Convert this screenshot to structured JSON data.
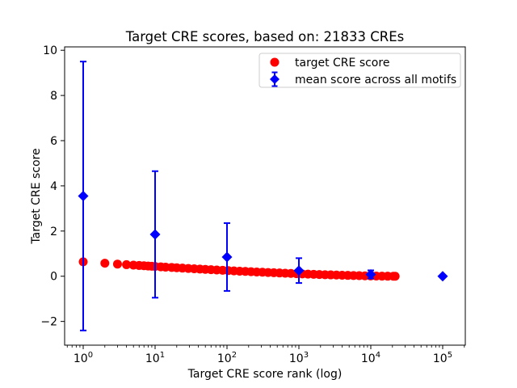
{
  "figure": {
    "background": "#ffffff"
  },
  "chart_data": {
    "type": "scatter",
    "title": "Target CRE scores, based on: 21833 CREs",
    "xlabel": "Target CRE score rank (log)",
    "ylabel": "Target CRE score",
    "x_scale": "log",
    "xlim_log10": [
      -0.2584,
      5.3146
    ],
    "ylim": [
      -3.05,
      10.15
    ],
    "x_major_tick_exponents": [
      0,
      1,
      2,
      3,
      4,
      5
    ],
    "y_ticks": [
      -2,
      0,
      2,
      4,
      6,
      8,
      10
    ],
    "grid": false,
    "legend_position": "upper right",
    "series": [
      {
        "name": "target CRE score",
        "plot_type": "scatter",
        "marker": "circle",
        "color": "#ff0000",
        "x": [
          1,
          2,
          3,
          4,
          5,
          6,
          7,
          8,
          9,
          10,
          12,
          14,
          17,
          20,
          24,
          29,
          35,
          42,
          50,
          60,
          72,
          87,
          104,
          125,
          150,
          180,
          216,
          259,
          311,
          373,
          448,
          538,
          645,
          774,
          929,
          1115,
          1338,
          1606,
          1927,
          2312,
          2774,
          3329,
          3995,
          4794,
          5753,
          6904,
          8284,
          9941,
          11929,
          14316,
          17179,
          20616,
          21833
        ],
        "y": [
          0.64,
          0.575,
          0.538,
          0.512,
          0.492,
          0.476,
          0.463,
          0.451,
          0.441,
          0.432,
          0.417,
          0.404,
          0.388,
          0.375,
          0.36,
          0.346,
          0.331,
          0.317,
          0.304,
          0.29,
          0.277,
          0.263,
          0.251,
          0.238,
          0.225,
          0.213,
          0.201,
          0.189,
          0.178,
          0.166,
          0.155,
          0.145,
          0.134,
          0.124,
          0.114,
          0.104,
          0.095,
          0.086,
          0.077,
          0.068,
          0.06,
          0.052,
          0.045,
          0.038,
          0.031,
          0.025,
          0.019,
          0.014,
          0.01,
          0.005,
          0.002,
          0.0,
          0.0
        ]
      },
      {
        "name": "mean score across all motifs",
        "plot_type": "errorbar",
        "marker": "diamond",
        "color": "#0000ff",
        "x": [
          1,
          10,
          100,
          1000,
          10000,
          100000
        ],
        "y": [
          3.55,
          1.85,
          0.85,
          0.25,
          0.08,
          0.0
        ],
        "yerr": [
          5.95,
          2.8,
          1.5,
          0.55,
          0.18,
          0.04
        ]
      }
    ]
  },
  "legend": {
    "entries": [
      "target CRE score",
      "mean score across all motifs"
    ],
    "border_color": "#cccccc",
    "background": "#ffffff"
  },
  "colors": {
    "red_series": "#ff0000",
    "blue_series": "#0000ff",
    "axis": "#000000",
    "text": "#000000"
  }
}
